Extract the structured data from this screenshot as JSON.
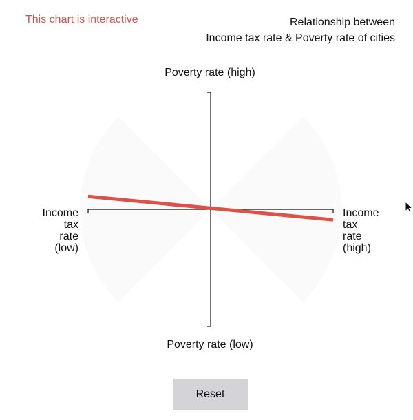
{
  "interactive_note": "This chart is interactive",
  "title_lines": [
    "Relationship between",
    "Income tax rate & Poverty rate of cities"
  ],
  "axes": {
    "top": "Poverty rate (high)",
    "bottom": "Poverty rate (low)",
    "left_lines": [
      "Income",
      "tax",
      "rate",
      "(low)"
    ],
    "right_lines": [
      "Income",
      "tax",
      "rate",
      "(high)"
    ]
  },
  "reset_label": "Reset",
  "colors": {
    "accent": "#d9534a",
    "axis": "#111111",
    "cone": "#fafafa",
    "button": "#d4d4d8"
  },
  "cursor_icon": "arrow-cursor-icon",
  "chart_data": {
    "type": "line",
    "xlabel": "Income tax rate",
    "ylabel": "Poverty rate",
    "x_range_labels": [
      "low",
      "high"
    ],
    "y_range_labels": [
      "low",
      "high"
    ],
    "xlim": [
      -1,
      1
    ],
    "ylim": [
      -1,
      1
    ],
    "series": [
      {
        "x": [
          -1,
          1
        ],
        "y": [
          0.11,
          -0.09
        ]
      }
    ],
    "slope": -0.1,
    "cone_half_angle_deg": 45,
    "grid": false
  }
}
